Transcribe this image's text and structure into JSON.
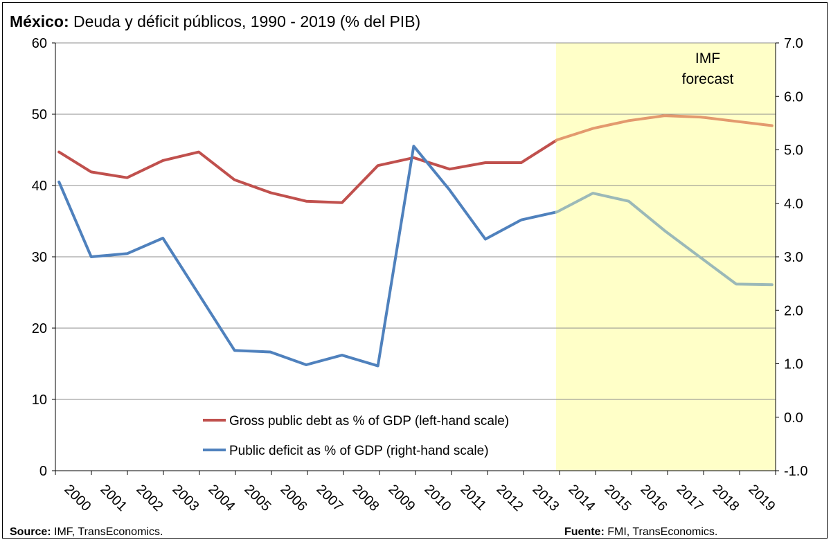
{
  "title": {
    "bold": "México:",
    "rest": " Deuda y déficit públicos, 1990 - 2019 (% del PIB)"
  },
  "footer": {
    "left_bold": "Source:",
    "left_rest": " IMF, TransEconomics.",
    "right_bold": "Fuente:",
    "right_rest": " FMI, TransEconomics."
  },
  "colors": {
    "debt": "#c0504d",
    "deficit": "#4f81bd",
    "debt_forecast": "#e39a6e",
    "deficit_forecast": "#9bb9b8",
    "forecast_band": "#ffffc8"
  },
  "chart_data": {
    "type": "line",
    "categories": [
      "2000",
      "2001",
      "2002",
      "2003",
      "2004",
      "2005",
      "2006",
      "2007",
      "2008",
      "2009",
      "2010",
      "2011",
      "2012",
      "2013",
      "2014",
      "2015",
      "2016",
      "2017",
      "2018",
      "2019"
    ],
    "left_axis": {
      "ylim": [
        0,
        60
      ],
      "ticks": [
        "0",
        "10",
        "20",
        "30",
        "40",
        "50",
        "60"
      ]
    },
    "right_axis": {
      "ylim": [
        -1.0,
        7.0
      ],
      "ticks": [
        "-1.0",
        "0.0",
        "1.0",
        "2.0",
        "3.0",
        "4.0",
        "5.0",
        "6.0",
        "7.0"
      ]
    },
    "forecast_label": [
      "IMF",
      "forecast"
    ],
    "forecast_start": "2013",
    "series": [
      {
        "name": "Gross public debt as % of GDP (left-hand scale)",
        "axis": "left",
        "x": [
          1999.6,
          2000.5,
          2001.5,
          2002.5,
          2003.5,
          2004.5,
          2005.5,
          2006.5,
          2007.5,
          2008.5,
          2009.5,
          2010.5,
          2011.5,
          2012.5,
          2013.5,
          2014.5,
          2015.5,
          2016.5,
          2017.5,
          2018.5,
          2019.5
        ],
        "values": [
          44.7,
          41.9,
          41.1,
          43.5,
          44.7,
          40.8,
          39.0,
          37.8,
          37.6,
          42.8,
          43.9,
          42.3,
          43.2,
          43.2,
          46.4,
          48.0,
          49.1,
          49.8,
          49.6,
          49.0,
          48.4
        ]
      },
      {
        "name": "Public deficit as % of GDP (right-hand scale)",
        "axis": "right",
        "x": [
          1999.6,
          2000.5,
          2001.5,
          2002.5,
          2003.5,
          2004.5,
          2005.5,
          2006.5,
          2007.5,
          2008.5,
          2009.5,
          2010.5,
          2011.5,
          2012.5,
          2013.5,
          2014.5,
          2015.5,
          2016.5,
          2017.5,
          2018.5,
          2019.5
        ],
        "values": [
          4.4,
          3.0,
          3.06,
          3.35,
          2.3,
          1.25,
          1.22,
          0.98,
          1.16,
          0.96,
          5.07,
          4.25,
          3.33,
          3.69,
          3.84,
          4.19,
          4.04,
          3.49,
          2.99,
          2.49,
          2.48
        ]
      }
    ]
  }
}
